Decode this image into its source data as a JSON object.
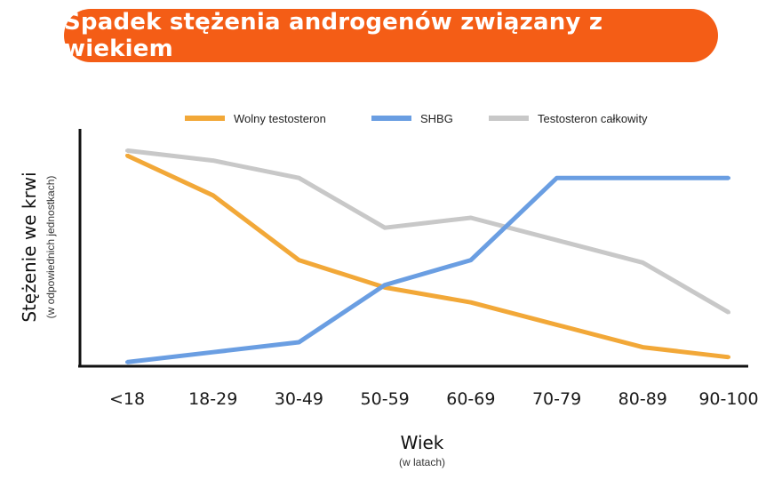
{
  "title": "Spadek stężenia androgenów związany z wiekiem",
  "chart_data": {
    "type": "line",
    "title": "Spadek stężenia androgenów związany z wiekiem",
    "xlabel": "Wiek",
    "xlabel_sub": "(w latach)",
    "ylabel": "Stężenie we krwi",
    "ylabel_sub": "(w odpowiednich jednostkach)",
    "categories": [
      "<18",
      "18-29",
      "30-49",
      "50-59",
      "60-69",
      "70-79",
      "80-89",
      "90-100"
    ],
    "ylim": [
      0,
      100
    ],
    "grid": false,
    "legend_position": "top",
    "series": [
      {
        "name": "Wolny testosteron",
        "color": "#f2a838",
        "values": [
          85,
          69,
          43,
          32,
          26,
          17,
          8,
          4
        ]
      },
      {
        "name": "SHBG",
        "color": "#6a9ee2",
        "values": [
          2,
          6,
          10,
          33,
          43,
          76,
          76,
          76
        ]
      },
      {
        "name": "Testosteron całkowity",
        "color": "#c8c8c8",
        "values": [
          87,
          83,
          76,
          56,
          60,
          51,
          42,
          22
        ]
      }
    ]
  }
}
